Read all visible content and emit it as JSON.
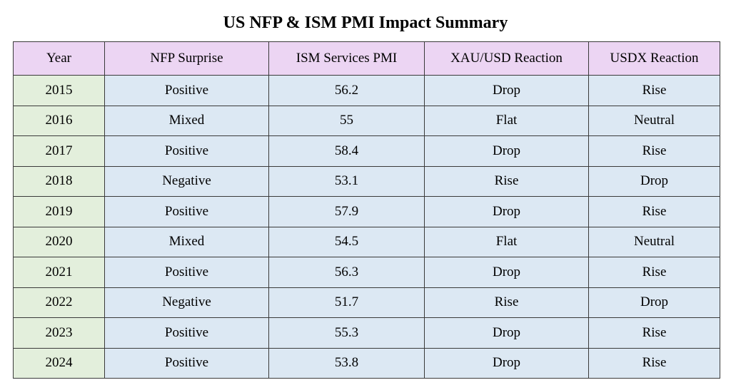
{
  "chart_data": {
    "type": "table",
    "title": "US NFP & ISM PMI Impact Summary",
    "columns": [
      "Year",
      "NFP Surprise",
      "ISM Services PMI",
      "XAU/USD Reaction",
      "USDX Reaction"
    ],
    "rows": [
      [
        "2015",
        "Positive",
        "56.2",
        "Drop",
        "Rise"
      ],
      [
        "2016",
        "Mixed",
        "55",
        "Flat",
        "Neutral"
      ],
      [
        "2017",
        "Positive",
        "58.4",
        "Drop",
        "Rise"
      ],
      [
        "2018",
        "Negative",
        "53.1",
        "Rise",
        "Drop"
      ],
      [
        "2019",
        "Positive",
        "57.9",
        "Drop",
        "Rise"
      ],
      [
        "2020",
        "Mixed",
        "54.5",
        "Flat",
        "Neutral"
      ],
      [
        "2021",
        "Positive",
        "56.3",
        "Drop",
        "Rise"
      ],
      [
        "2022",
        "Negative",
        "51.7",
        "Rise",
        "Drop"
      ],
      [
        "2023",
        "Positive",
        "55.3",
        "Drop",
        "Rise"
      ],
      [
        "2024",
        "Positive",
        "53.8",
        "Drop",
        "Rise"
      ]
    ],
    "colors": {
      "header_bg": "#ecd5f3",
      "year_col_bg": "#e3efdc",
      "body_bg": "#dce8f3",
      "border": "#3a3a3a"
    }
  }
}
